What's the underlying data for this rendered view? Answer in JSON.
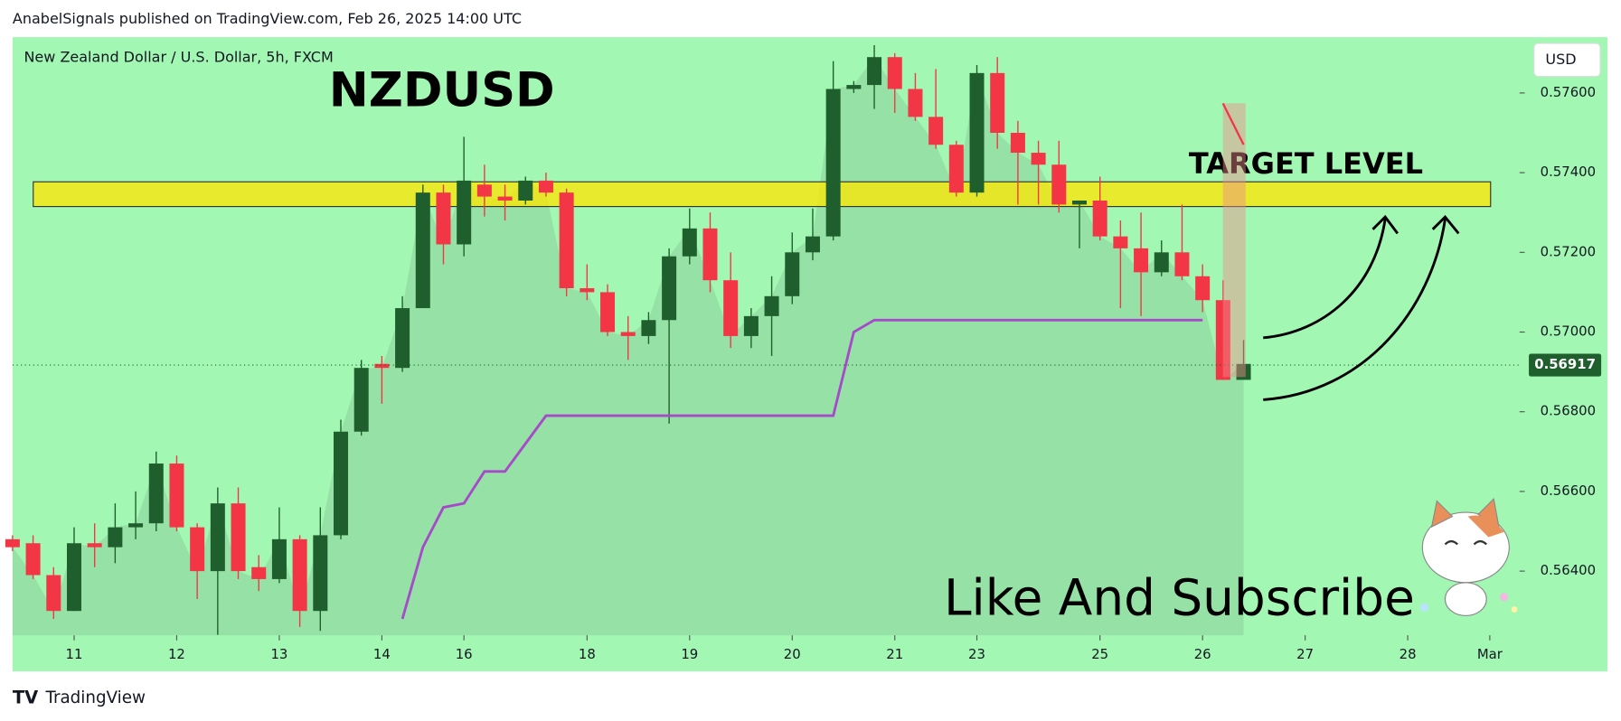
{
  "header": "AnabelSignals published on TradingView.com, Feb 26, 2025 14:00 UTC",
  "footer": "TradingView",
  "chart_data": {
    "type": "candlestick",
    "subtitle": "New Zealand Dollar / U.S. Dollar, 5h, FXCM",
    "title": "NZDUSD",
    "currency": "USD",
    "annotations": [
      "TARGET LEVEL",
      "Like And Subscribe"
    ],
    "up_color": "#1f5f2d",
    "down_color": "#f23645",
    "open": [
      0.5648,
      0.5647,
      0.5639,
      0.563,
      0.5647,
      0.5646,
      0.5651,
      0.5652,
      0.5667,
      0.5651,
      0.564,
      0.5657,
      0.5641,
      0.5638,
      0.5648,
      0.563,
      0.5649,
      0.5675,
      0.5692,
      0.5691,
      0.5706,
      0.5735,
      0.5722,
      0.5737,
      0.5734,
      0.5733,
      0.5738,
      0.5735,
      0.5711,
      0.571,
      0.57,
      0.5699,
      0.5703,
      0.5719,
      0.5726,
      0.5713,
      0.5699,
      0.5704,
      0.5709,
      0.572,
      0.5724,
      0.5761,
      0.5762,
      0.5769,
      0.5761,
      0.5754,
      0.5747,
      0.5735,
      0.5765,
      0.575,
      0.5745,
      0.5742,
      0.5732,
      0.5733,
      0.5724,
      0.5721,
      0.5715,
      0.572,
      0.5714,
      0.5708,
      0.5688
    ],
    "high": [
      0.5649,
      0.5649,
      0.5641,
      0.5651,
      0.5652,
      0.5657,
      0.566,
      0.567,
      0.5669,
      0.5652,
      0.5661,
      0.5661,
      0.5644,
      0.5656,
      0.5649,
      0.5656,
      0.5678,
      0.5693,
      0.5694,
      0.5709,
      0.5737,
      0.5737,
      0.5749,
      0.5742,
      0.5737,
      0.5739,
      0.574,
      0.5736,
      0.5717,
      0.5712,
      0.5704,
      0.5705,
      0.5721,
      0.5731,
      0.573,
      0.572,
      0.5706,
      0.5714,
      0.5725,
      0.5731,
      0.5768,
      0.5763,
      0.5772,
      0.577,
      0.5765,
      0.5766,
      0.5748,
      0.5767,
      0.5769,
      0.5753,
      0.5748,
      0.5748,
      0.5733,
      0.5739,
      0.5728,
      0.573,
      0.5723,
      0.5732,
      0.5717,
      0.5713,
      0.5698
    ],
    "low": [
      0.5645,
      0.5638,
      0.5628,
      0.563,
      0.5641,
      0.5642,
      0.5648,
      0.565,
      0.565,
      0.5633,
      0.5624,
      0.5638,
      0.5635,
      0.5637,
      0.5626,
      0.5625,
      0.5648,
      0.5674,
      0.5682,
      0.569,
      0.5706,
      0.5717,
      0.5719,
      0.5729,
      0.5728,
      0.5732,
      0.5734,
      0.5709,
      0.5708,
      0.5699,
      0.5693,
      0.5697,
      0.5677,
      0.5717,
      0.571,
      0.5696,
      0.5696,
      0.5694,
      0.5707,
      0.5718,
      0.5723,
      0.576,
      0.5756,
      0.5755,
      0.5753,
      0.5746,
      0.5734,
      0.5734,
      0.5746,
      0.5732,
      0.5732,
      0.573,
      0.5721,
      0.5723,
      0.5706,
      0.5704,
      0.5714,
      0.5713,
      0.5705,
      0.5688,
      0.5688
    ],
    "close": [
      0.5646,
      0.5639,
      0.563,
      0.5647,
      0.5646,
      0.5651,
      0.5652,
      0.5667,
      0.5651,
      0.564,
      0.5657,
      0.564,
      0.5638,
      0.5648,
      0.563,
      0.5649,
      0.5675,
      0.5691,
      0.5691,
      0.5706,
      0.5735,
      0.5722,
      0.5738,
      0.5734,
      0.5733,
      0.5738,
      0.5735,
      0.5711,
      0.571,
      0.57,
      0.5699,
      0.5703,
      0.5719,
      0.5726,
      0.5713,
      0.5699,
      0.5704,
      0.5709,
      0.572,
      0.5724,
      0.5761,
      0.5762,
      0.5769,
      0.5761,
      0.5754,
      0.5747,
      0.5735,
      0.5765,
      0.575,
      0.5745,
      0.5742,
      0.5732,
      0.5733,
      0.5724,
      0.5721,
      0.5715,
      0.572,
      0.5714,
      0.5708,
      0.5688,
      0.5692
    ],
    "trend_line": {
      "color": "#a64ac9",
      "values": [
        null,
        null,
        null,
        null,
        null,
        null,
        null,
        null,
        null,
        null,
        null,
        null,
        null,
        null,
        null,
        null,
        null,
        null,
        null,
        0.5628,
        0.5646,
        0.5656,
        0.5657,
        0.5665,
        0.5665,
        0.5672,
        0.5679,
        0.5679,
        0.5679,
        0.5679,
        0.5679,
        0.5679,
        0.5679,
        0.5679,
        0.5679,
        0.5679,
        0.5679,
        0.5679,
        0.5679,
        0.5679,
        0.5679,
        0.57,
        0.5703,
        0.5703,
        0.5703,
        0.5703,
        0.5703,
        0.5703,
        0.5703,
        0.5703,
        0.5703,
        0.5703,
        0.5703,
        0.5703,
        0.5703,
        0.5703,
        0.5703,
        0.5703,
        0.5703,
        null,
        null
      ]
    },
    "zone": [
      0.57315,
      0.57377
    ],
    "last_price": 0.56917,
    "xlim": [
      0,
      73.45
    ],
    "xticks": [
      {
        "value": 3,
        "label": "11"
      },
      {
        "value": 8,
        "label": "12"
      },
      {
        "value": 13,
        "label": "13"
      },
      {
        "value": 18,
        "label": "14"
      },
      {
        "value": 22,
        "label": "16"
      },
      {
        "value": 28,
        "label": "18"
      },
      {
        "value": 33,
        "label": "19"
      },
      {
        "value": 38,
        "label": "20"
      },
      {
        "value": 43,
        "label": "21"
      },
      {
        "value": 47,
        "label": "23"
      },
      {
        "value": 53,
        "label": "25"
      },
      {
        "value": 58,
        "label": "26"
      },
      {
        "value": 63,
        "label": "27"
      },
      {
        "value": 68,
        "label": "28"
      },
      {
        "value": 72,
        "label": "Mar"
      }
    ],
    "ylim": [
      0.56239,
      0.5774
    ],
    "yticks": [
      {
        "value": 0.564,
        "label": "0.56400"
      },
      {
        "value": 0.566,
        "label": "0.56600"
      },
      {
        "value": 0.568,
        "label": "0.56800"
      },
      {
        "value": 0.57,
        "label": "0.57000"
      },
      {
        "value": 0.572,
        "label": "0.57200"
      },
      {
        "value": 0.574,
        "label": "0.57400"
      },
      {
        "value": 0.576,
        "label": "0.57600"
      }
    ]
  }
}
